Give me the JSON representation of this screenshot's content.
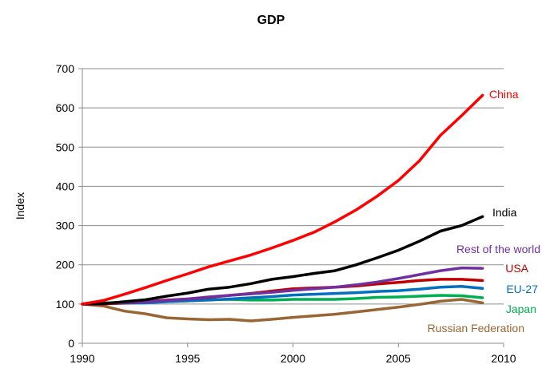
{
  "chart_data": {
    "type": "line",
    "title": "GDP",
    "xlabel": "",
    "ylabel": "Index",
    "xlim": [
      1990,
      2010
    ],
    "ylim": [
      0,
      700
    ],
    "x_ticks": [
      1990,
      1995,
      2000,
      2005,
      2010
    ],
    "y_ticks": [
      0,
      100,
      200,
      300,
      400,
      500,
      600,
      700
    ],
    "grid": "horizontal",
    "legend": "inline labels at line ends",
    "x": [
      1990,
      1991,
      1992,
      1993,
      1994,
      1995,
      1996,
      1997,
      1998,
      1999,
      2000,
      2001,
      2002,
      2003,
      2004,
      2005,
      2006,
      2007,
      2008,
      2009
    ],
    "series": [
      {
        "name": "China",
        "color": "#ff0000",
        "values": [
          100,
          109,
          125,
          142,
          160,
          177,
          195,
          210,
          225,
          243,
          262,
          283,
          310,
          340,
          375,
          415,
          465,
          530,
          580,
          632
        ]
      },
      {
        "name": "India",
        "color": "#000000",
        "values": [
          100,
          101,
          106,
          111,
          120,
          128,
          138,
          143,
          152,
          163,
          170,
          178,
          185,
          200,
          218,
          237,
          260,
          286,
          300,
          323
        ]
      },
      {
        "name": "Rest of the world",
        "color": "#7030a0",
        "values": [
          100,
          102,
          104,
          106,
          109,
          113,
          118,
          122,
          126,
          130,
          135,
          139,
          143,
          149,
          156,
          165,
          175,
          185,
          192,
          191
        ]
      },
      {
        "name": "USA",
        "color": "#c00000",
        "values": [
          100,
          100,
          103,
          106,
          110,
          113,
          117,
          122,
          127,
          133,
          139,
          141,
          143,
          146,
          151,
          155,
          160,
          163,
          163,
          160
        ]
      },
      {
        "name": "EU-27",
        "color": "#0070c0",
        "values": [
          100,
          101,
          102,
          103,
          106,
          108,
          110,
          113,
          116,
          119,
          123,
          125,
          127,
          129,
          132,
          134,
          138,
          143,
          145,
          140
        ]
      },
      {
        "name": "Japan",
        "color": "#00b050",
        "values": [
          100,
          103,
          104,
          104,
          106,
          108,
          111,
          112,
          110,
          110,
          112,
          112,
          112,
          114,
          117,
          118,
          120,
          122,
          121,
          116
        ]
      },
      {
        "name": "Russian Federation",
        "color": "#996633",
        "values": [
          100,
          95,
          82,
          75,
          65,
          62,
          60,
          61,
          57,
          61,
          66,
          70,
          74,
          80,
          86,
          92,
          99,
          107,
          112,
          103
        ]
      }
    ]
  }
}
